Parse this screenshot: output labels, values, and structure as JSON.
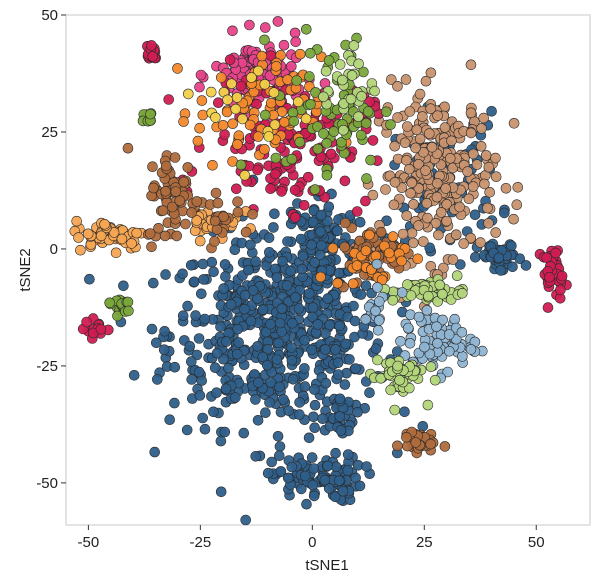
{
  "chart_data": {
    "type": "scatter",
    "title": "",
    "xlabel": "tSNE1",
    "ylabel": "tSNE2",
    "xlim": [
      -55,
      62
    ],
    "ylim": [
      -59,
      50
    ],
    "xticks": [
      -50,
      -25,
      0,
      25,
      50
    ],
    "yticks": [
      -50,
      -25,
      0,
      25,
      50
    ],
    "xtick_labels": [
      "-50",
      "-25",
      "0",
      "25",
      "50"
    ],
    "ytick_labels": [
      "-50",
      "-25",
      "0",
      "25",
      "50"
    ],
    "grid": false,
    "legend": "none",
    "colors": {
      "dark_blue": "#2e5f8a",
      "tan": "#c9936f",
      "pink": "#e8438a",
      "crimson": "#d01c52",
      "orange": "#f4892c",
      "light_orange": "#f7a552",
      "brown": "#b06b3c",
      "light_green": "#b3d67a",
      "olive_green": "#7aa63a",
      "light_blue": "#8fb5d3",
      "yellow": "#f2d04a"
    },
    "clusters": [
      {
        "color": "dark_blue",
        "cx": -8,
        "cy": -18,
        "sx": 12,
        "sy": 10,
        "n": 600
      },
      {
        "color": "dark_blue",
        "cx": 2,
        "cy": 1,
        "sx": 4,
        "sy": 6,
        "n": 130
      },
      {
        "color": "dark_blue",
        "cx": 6,
        "cy": -36,
        "sx": 2,
        "sy": 3,
        "n": 30
      },
      {
        "color": "dark_blue",
        "cx": 1,
        "cy": -49,
        "sx": 5,
        "sy": 2.5,
        "n": 100
      },
      {
        "color": "dark_blue",
        "cx": 42,
        "cy": -2,
        "sx": 2.5,
        "sy": 1.6,
        "n": 45
      },
      {
        "color": "dark_blue",
        "cx": 30,
        "cy": 15,
        "sx": 6,
        "sy": 7,
        "n": 70
      },
      {
        "color": "tan",
        "cx": 28,
        "cy": 16,
        "sx": 6.5,
        "sy": 9,
        "n": 260
      },
      {
        "color": "pink",
        "cx": -12,
        "cy": 37,
        "sx": 5,
        "sy": 4,
        "n": 120
      },
      {
        "color": "crimson",
        "cx": -5,
        "cy": 23,
        "sx": 9,
        "sy": 7,
        "n": 140
      },
      {
        "color": "orange",
        "cx": -12,
        "cy": 29,
        "sx": 7,
        "sy": 6,
        "n": 80
      },
      {
        "color": "olive_green",
        "cx": 4,
        "cy": 30,
        "sx": 6,
        "sy": 8,
        "n": 70
      },
      {
        "color": "light_green",
        "cx": 8,
        "cy": 35,
        "sx": 3,
        "sy": 4,
        "n": 30
      },
      {
        "color": "yellow",
        "cx": -12,
        "cy": 30,
        "sx": 6,
        "sy": 6,
        "n": 20
      },
      {
        "color": "crimson",
        "cx": -36,
        "cy": 42,
        "sx": 0.8,
        "sy": 1.2,
        "n": 14
      },
      {
        "color": "light_orange",
        "cx": -45,
        "cy": 3,
        "sx": 4,
        "sy": 1.5,
        "n": 60
      },
      {
        "color": "brown",
        "cx": -31,
        "cy": 11,
        "sx": 3,
        "sy": 5,
        "n": 70
      },
      {
        "color": "light_orange",
        "cx": -22,
        "cy": 6,
        "sx": 3,
        "sy": 2,
        "n": 30
      },
      {
        "color": "brown",
        "cx": -20,
        "cy": 7,
        "sx": 3,
        "sy": 2,
        "n": 20
      },
      {
        "color": "brown",
        "cx": 13,
        "cy": -1,
        "sx": 4,
        "sy": 3,
        "n": 60
      },
      {
        "color": "orange",
        "cx": 13,
        "cy": -2,
        "sx": 4,
        "sy": 3,
        "n": 30
      },
      {
        "color": "crimson",
        "cx": 54,
        "cy": -5,
        "sx": 1.3,
        "sy": 2.5,
        "n": 35
      },
      {
        "color": "light_green",
        "cx": 26,
        "cy": -9,
        "sx": 4,
        "sy": 1.2,
        "n": 55
      },
      {
        "color": "light_blue",
        "cx": 28,
        "cy": -20,
        "sx": 4,
        "sy": 3,
        "n": 75
      },
      {
        "color": "light_green",
        "cx": 19,
        "cy": -27,
        "sx": 3,
        "sy": 2.5,
        "n": 50
      },
      {
        "color": "brown",
        "cx": 23,
        "cy": -41,
        "sx": 2,
        "sy": 1.2,
        "n": 30
      },
      {
        "color": "olive_green",
        "cx": -43,
        "cy": -12,
        "sx": 1.5,
        "sy": 1,
        "n": 20
      },
      {
        "color": "crimson",
        "cx": -48,
        "cy": -17,
        "sx": 1.4,
        "sy": 1,
        "n": 14
      },
      {
        "color": "olive_green",
        "cx": -37,
        "cy": 28,
        "sx": 1.2,
        "sy": 0.8,
        "n": 8
      },
      {
        "color": "light_blue",
        "cx": 14,
        "cy": -14,
        "sx": 1.2,
        "sy": 3,
        "n": 16
      }
    ]
  }
}
